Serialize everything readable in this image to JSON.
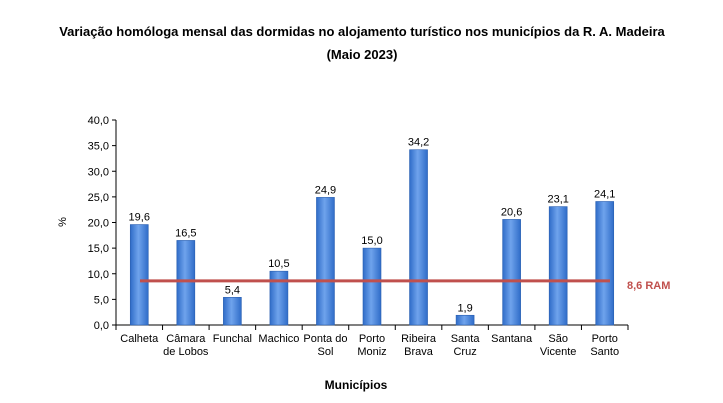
{
  "chart_data": {
    "type": "bar",
    "title": "Variação homóloga mensal das dormidas no alojamento turístico nos municípios da R. A. Madeira",
    "subtitle": "(Maio 2023)",
    "xlabel": "Municípios",
    "ylabel": "%",
    "ylim": [
      0,
      40
    ],
    "yticks": [
      "0,0",
      "5,0",
      "10,0",
      "15,0",
      "20,0",
      "25,0",
      "30,0",
      "35,0",
      "40,0"
    ],
    "grid": false,
    "categories": [
      [
        "Calheta"
      ],
      [
        "Câmara",
        "de Lobos"
      ],
      [
        "Funchal"
      ],
      [
        "Machico"
      ],
      [
        "Ponta do",
        "Sol"
      ],
      [
        "Porto",
        "Moniz"
      ],
      [
        "Ribeira",
        "Brava"
      ],
      [
        "Santa",
        "Cruz"
      ],
      [
        "Santana"
      ],
      [
        "São",
        "Vicente"
      ],
      [
        "Porto",
        "Santo"
      ]
    ],
    "values": [
      19.6,
      16.5,
      5.4,
      10.5,
      24.9,
      15.0,
      34.2,
      1.9,
      20.6,
      23.1,
      24.1
    ],
    "value_labels": [
      "19,6",
      "16,5",
      "5,4",
      "10,5",
      "24,9",
      "15,0",
      "34,2",
      "1,9",
      "20,6",
      "23,1",
      "24,1"
    ],
    "reference_line": {
      "value": 8.6,
      "label": "8,6 RAM",
      "color": "#c0504d"
    },
    "bar_color": "#4f86d9"
  }
}
